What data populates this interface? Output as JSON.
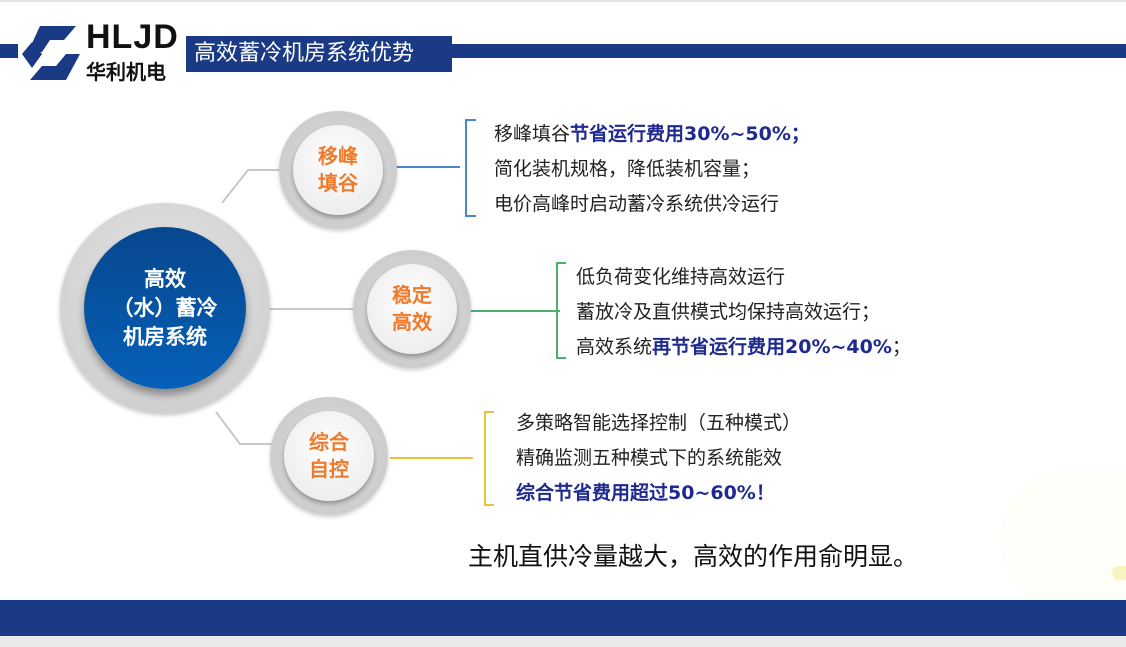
{
  "header": {
    "logo_en": "HLJD",
    "logo_cn": "华利机电",
    "title": "高效蓄冷机房系统优势"
  },
  "center": {
    "lines": [
      "高效",
      "（水）蓄冷",
      "机房系统"
    ]
  },
  "nodes": [
    {
      "label": [
        "移峰",
        "填谷"
      ],
      "color": "#4a86c8",
      "items": [
        {
          "text": "移峰填谷",
          "bold": "节省运行费用30%~50%；"
        },
        {
          "text": "简化装机规格，降低装机容量；",
          "bold": ""
        },
        {
          "text": "电价高峰时启动蓄冷系统供冷运行",
          "bold": ""
        }
      ]
    },
    {
      "label": [
        "稳定",
        "高效"
      ],
      "color": "#4caf6a",
      "items": [
        {
          "text": "低负荷变化维持高效运行",
          "bold": ""
        },
        {
          "text": "蓄放冷及直供模式均保持高效运行；",
          "bold": ""
        },
        {
          "text": "高效系统",
          "bold": "再节省运行费用20%~40%",
          "tail": "；"
        }
      ]
    },
    {
      "label": [
        "综合",
        "自控"
      ],
      "color": "#e6c33a",
      "items": [
        {
          "text": "多策略智能选择控制（五种模式）",
          "bold": ""
        },
        {
          "text": "精确监测五种模式下的系统能效",
          "bold": ""
        },
        {
          "text": "",
          "bold": "综合节省费用超过50~60%！"
        }
      ]
    }
  ],
  "note": "主机直供冷量越大，高效的作用俞明显。",
  "colors": {
    "brand": "#1b3a86",
    "accent": "#f07a2a",
    "highlight": "#1f2a8f"
  }
}
